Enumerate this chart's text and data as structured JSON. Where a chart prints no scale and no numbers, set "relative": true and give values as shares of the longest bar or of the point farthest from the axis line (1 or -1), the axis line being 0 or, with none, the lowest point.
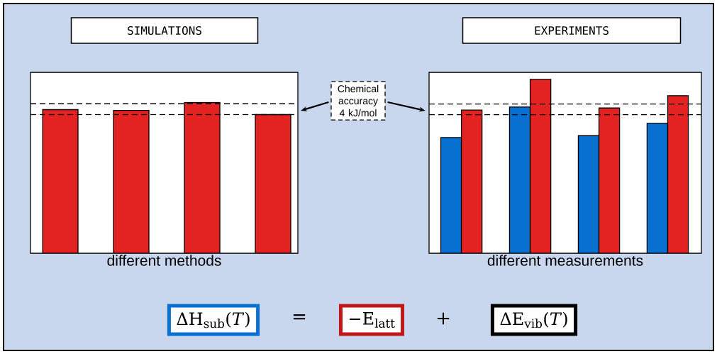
{
  "chart_data": [
    {
      "type": "bar",
      "title": "SIMULATIONS",
      "xlabel": "different methods",
      "relative": true,
      "categories": [
        null,
        null,
        null,
        null
      ],
      "values": [
        0.953,
        0.948,
        1,
        0.92
      ],
      "color": "#e32222",
      "ref_lines": [
        {
          "axis": "y",
          "value": 0.992,
          "line_style": "dashed"
        },
        {
          "axis": "y",
          "value": 0.92,
          "line_style": "dashed"
        }
      ],
      "annotations": [
        "Chemical accuracy 4 kJ/mol"
      ]
    },
    {
      "type": "bar",
      "title": "EXPERIMENTS",
      "xlabel": "different measurements",
      "relative": true,
      "categories": [
        null,
        null,
        null,
        null
      ],
      "series": [
        {
          "color": "#0870d0",
          "values": [
            0.665,
            0.841,
            0.676,
            0.747
          ]
        },
        {
          "color": "#e32222",
          "values": [
            0.823,
            1,
            0.835,
            0.906
          ]
        }
      ],
      "ref_lines": [
        {
          "axis": "y",
          "value": 0.858,
          "line_style": "dashed"
        },
        {
          "axis": "y",
          "value": 0.796,
          "line_style": "dashed"
        }
      ],
      "annotations": [
        "ΔH$_{sub}$(*T*)",
        "=",
        "−E$_{latt}$",
        "+",
        "ΔE$_{vib}$(*T*)"
      ]
    }
  ]
}
